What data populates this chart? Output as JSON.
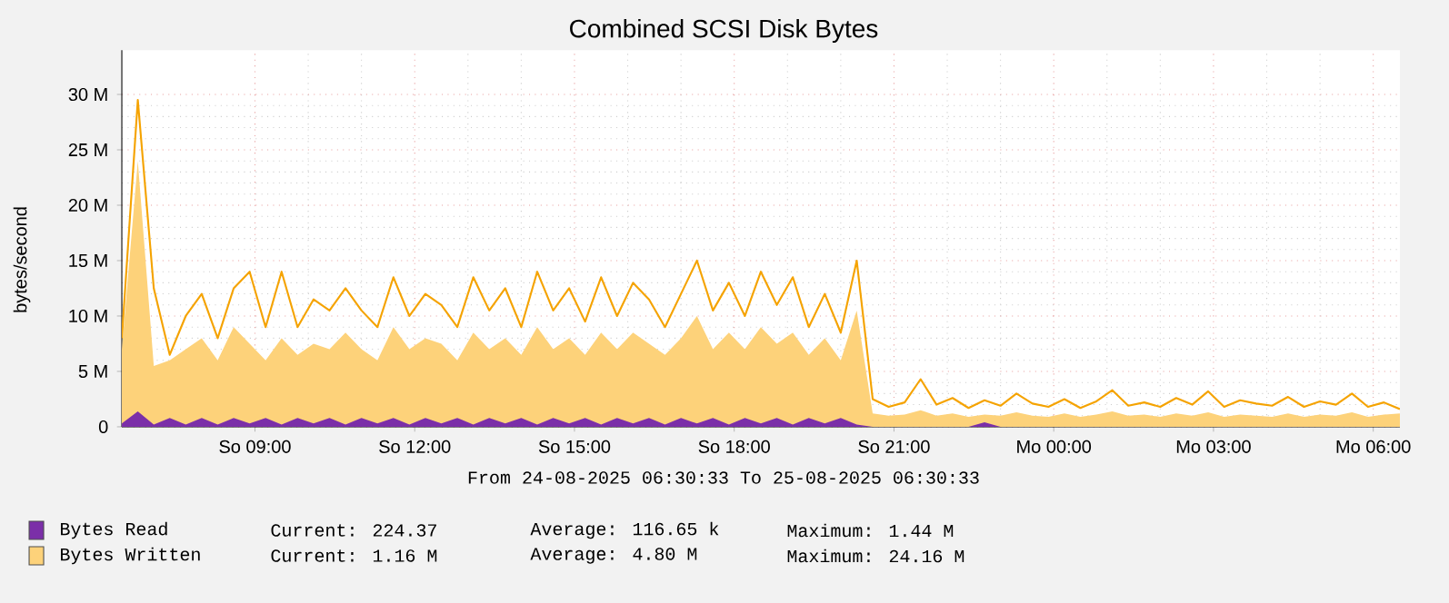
{
  "chart_data": {
    "type": "area",
    "title": "Combined SCSI Disk Bytes",
    "ylabel": "bytes/second",
    "x": [
      "2025-08-24T06:30",
      "2025-08-24T06:48",
      "2025-08-24T07:06",
      "2025-08-24T07:24",
      "2025-08-24T07:42",
      "2025-08-24T08:00",
      "2025-08-24T08:18",
      "2025-08-24T08:36",
      "2025-08-24T08:54",
      "2025-08-24T09:12",
      "2025-08-24T09:30",
      "2025-08-24T09:48",
      "2025-08-24T10:06",
      "2025-08-24T10:24",
      "2025-08-24T10:42",
      "2025-08-24T11:00",
      "2025-08-24T11:18",
      "2025-08-24T11:36",
      "2025-08-24T11:54",
      "2025-08-24T12:12",
      "2025-08-24T12:30",
      "2025-08-24T12:48",
      "2025-08-24T13:06",
      "2025-08-24T13:24",
      "2025-08-24T13:42",
      "2025-08-24T14:00",
      "2025-08-24T14:18",
      "2025-08-24T14:36",
      "2025-08-24T14:54",
      "2025-08-24T15:12",
      "2025-08-24T15:30",
      "2025-08-24T15:48",
      "2025-08-24T16:06",
      "2025-08-24T16:24",
      "2025-08-24T16:42",
      "2025-08-24T17:00",
      "2025-08-24T17:18",
      "2025-08-24T17:36",
      "2025-08-24T17:54",
      "2025-08-24T18:12",
      "2025-08-24T18:30",
      "2025-08-24T18:48",
      "2025-08-24T19:06",
      "2025-08-24T19:24",
      "2025-08-24T19:42",
      "2025-08-24T20:00",
      "2025-08-24T20:18",
      "2025-08-24T20:36",
      "2025-08-24T20:54",
      "2025-08-24T21:12",
      "2025-08-24T21:30",
      "2025-08-24T21:48",
      "2025-08-24T22:06",
      "2025-08-24T22:24",
      "2025-08-24T22:42",
      "2025-08-24T23:00",
      "2025-08-24T23:18",
      "2025-08-24T23:36",
      "2025-08-24T23:54",
      "2025-08-25T00:12",
      "2025-08-25T00:30",
      "2025-08-25T00:48",
      "2025-08-25T01:06",
      "2025-08-25T01:24",
      "2025-08-25T01:42",
      "2025-08-25T02:00",
      "2025-08-25T02:18",
      "2025-08-25T02:36",
      "2025-08-25T02:54",
      "2025-08-25T03:12",
      "2025-08-25T03:30",
      "2025-08-25T03:48",
      "2025-08-25T04:06",
      "2025-08-25T04:24",
      "2025-08-25T04:42",
      "2025-08-25T05:00",
      "2025-08-25T05:18",
      "2025-08-25T05:36",
      "2025-08-25T05:54",
      "2025-08-25T06:12",
      "2025-08-25T06:30"
    ],
    "series": [
      {
        "name": "Bytes Written",
        "color": "#fdd27a",
        "values": [
          7,
          24,
          5.5,
          6,
          7,
          8,
          6,
          9,
          7.5,
          6,
          8,
          6.5,
          7.5,
          7,
          8.5,
          7,
          6,
          9,
          7,
          8,
          7.5,
          6,
          8.5,
          7,
          8,
          6.5,
          9,
          7,
          8,
          6.5,
          8.5,
          7,
          8.5,
          7.5,
          6.5,
          8,
          10,
          7,
          8.5,
          7,
          9,
          7.5,
          8.5,
          6.5,
          8,
          6,
          10.5,
          1.2,
          1,
          1.1,
          1.5,
          1,
          1.2,
          0.9,
          1.1,
          1,
          1.3,
          1,
          0.9,
          1.2,
          0.9,
          1.1,
          1.4,
          1,
          1.1,
          0.9,
          1.2,
          1,
          1.3,
          0.9,
          1.1,
          1,
          0.9,
          1.2,
          0.9,
          1.1,
          1,
          1.3,
          0.9,
          1.1,
          1.2
        ]
      },
      {
        "type": "line",
        "color": "#f5a300",
        "values": [
          8,
          29.5,
          12.5,
          6.5,
          10,
          12,
          8,
          12.5,
          14,
          9,
          14,
          9,
          11.5,
          10.5,
          12.5,
          10.5,
          9,
          13.5,
          10,
          12,
          11,
          9,
          13.5,
          10.5,
          12.5,
          9,
          14,
          10.5,
          12.5,
          9.5,
          13.5,
          10,
          13,
          11.5,
          9,
          12,
          15,
          10.5,
          13,
          10,
          14,
          11,
          13.5,
          9,
          12,
          8.5,
          15,
          2.5,
          1.8,
          2.2,
          4.3,
          2,
          2.6,
          1.7,
          2.4,
          1.9,
          3,
          2.1,
          1.8,
          2.5,
          1.7,
          2.3,
          3.3,
          1.9,
          2.2,
          1.8,
          2.6,
          2,
          3.2,
          1.8,
          2.4,
          2.1,
          1.9,
          2.7,
          1.8,
          2.3,
          2,
          3,
          1.8,
          2.2,
          1.6
        ]
      },
      {
        "name": "Bytes Read",
        "color": "#7b2fa8",
        "values": [
          0.3,
          1.4,
          0.2,
          0.8,
          0.2,
          0.8,
          0.2,
          0.8,
          0.3,
          0.8,
          0.2,
          0.8,
          0.3,
          0.8,
          0.2,
          0.8,
          0.3,
          0.8,
          0.2,
          0.8,
          0.3,
          0.8,
          0.2,
          0.8,
          0.3,
          0.8,
          0.2,
          0.8,
          0.3,
          0.8,
          0.2,
          0.8,
          0.3,
          0.8,
          0.2,
          0.8,
          0.3,
          0.8,
          0.2,
          0.8,
          0.3,
          0.8,
          0.2,
          0.8,
          0.3,
          0.8,
          0.2,
          0,
          0,
          0,
          0,
          0,
          0,
          0,
          0.4,
          0,
          0,
          0,
          0,
          0,
          0,
          0,
          0,
          0,
          0,
          0,
          0,
          0,
          0,
          0,
          0,
          0,
          0,
          0,
          0,
          0,
          0,
          0,
          0,
          0,
          0
        ]
      }
    ],
    "xlim": [
      "2025-08-24T06:30",
      "2025-08-25T06:30"
    ],
    "xticks": [
      {
        "value": "2025-08-24T09:00",
        "label": "So 09:00"
      },
      {
        "value": "2025-08-24T12:00",
        "label": "So 12:00"
      },
      {
        "value": "2025-08-24T15:00",
        "label": "So 15:00"
      },
      {
        "value": "2025-08-24T18:00",
        "label": "So 18:00"
      },
      {
        "value": "2025-08-24T21:00",
        "label": "So 21:00"
      },
      {
        "value": "2025-08-25T00:00",
        "label": "Mo 00:00"
      },
      {
        "value": "2025-08-25T03:00",
        "label": "Mo 03:00"
      },
      {
        "value": "2025-08-25T06:00",
        "label": "Mo 06:00"
      }
    ],
    "ylim": [
      0,
      34
    ],
    "yticks": [
      0,
      {
        "value": 5,
        "label": "5 M"
      },
      {
        "value": 10,
        "label": "10 M"
      },
      {
        "value": 15,
        "label": "15 M"
      },
      {
        "value": 20,
        "label": "20 M"
      },
      {
        "value": 25,
        "label": "25 M"
      },
      {
        "value": 30,
        "label": "30 M"
      }
    ],
    "grid": true,
    "legend": "bottom",
    "annotations": [
      "From 24-08-2025 06:30:33 To 25-08-2025 06:30:33",
      "Current: 224.37",
      "Average: 116.65 k",
      "Maximum: 1.44 M",
      "Current: 1.16 M",
      "Average: 4.80 M",
      "Maximum: 24.16 M"
    ]
  }
}
